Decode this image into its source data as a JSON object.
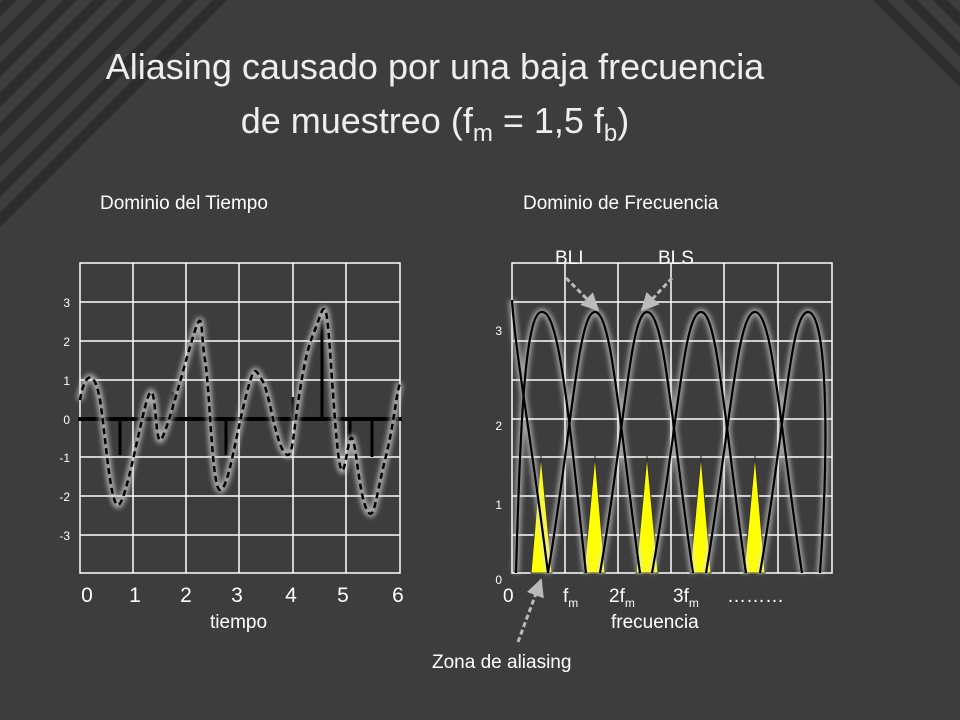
{
  "slide": {
    "title_line1": "Aliasing causado por una baja frecuencia",
    "title_line2_pre": "de muestreo (f",
    "title_sub_m": "m",
    "title_line2_mid": " = 1,5 f",
    "title_sub_b": "b",
    "title_line2_post": ")"
  },
  "time_panel": {
    "heading": "Dominio del Tiempo",
    "y_ticks": [
      "3",
      "2",
      "1",
      "0",
      "-1",
      "-2",
      "-3"
    ],
    "x_ticks": [
      "0",
      "1",
      "2",
      "3",
      "4",
      "5",
      "6"
    ],
    "x_label": "tiempo"
  },
  "freq_panel": {
    "heading": "Dominio de Frecuencia",
    "y_ticks": [
      "3",
      "2",
      "1",
      "0"
    ],
    "x_tick_0": "0",
    "x_tick_f": "f",
    "x_tick_2f": "2f",
    "x_tick_3f": "3f",
    "x_tick_sub": "m",
    "x_tick_dots": "………",
    "x_label": "frecuencia",
    "label_bli": "BLI",
    "label_bls": "BLS",
    "annotation": "Zona de aliasing"
  },
  "colors": {
    "background": "#3d3d3d",
    "grid": "#ffffff",
    "aliasing_fill": "#ffff00",
    "stripe": "#2a2a2a"
  }
}
